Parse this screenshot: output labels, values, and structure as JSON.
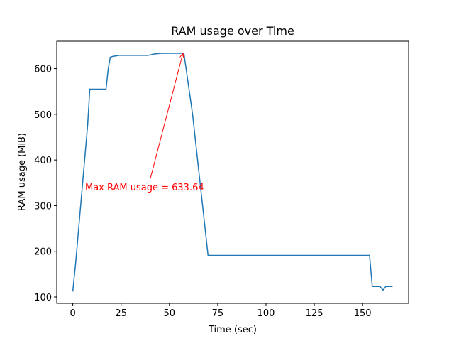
{
  "chart_data": {
    "type": "line",
    "title": "RAM usage over Time",
    "x_label": "Time (sec)",
    "y_label": "RAM usage (MiB)",
    "x": [
      0,
      1.5,
      7.7,
      8.8,
      17.2,
      18.3,
      19.4,
      21,
      24,
      39,
      42,
      46,
      57.5,
      62,
      70,
      153.6,
      155,
      159,
      160.6,
      162,
      165.5
    ],
    "series": [
      {
        "color": "#1f77b4",
        "values": [
          112,
          175,
          477,
          555,
          555,
          598,
          625,
          627,
          629,
          629,
          632,
          633.64,
          633.64,
          500,
          191,
          191,
          123,
          123,
          115,
          123,
          123
        ]
      }
    ],
    "xlim": [
      -8.3,
      173.8
    ],
    "ylim": [
      86,
      660
    ],
    "xticks": [
      0,
      25,
      50,
      75,
      100,
      125,
      150
    ],
    "yticks": [
      100,
      200,
      300,
      400,
      500,
      600
    ],
    "annotation": {
      "text": "Max RAM usage = 633.64",
      "x": 57,
      "y": 633.64,
      "color": "#ff0000"
    }
  }
}
